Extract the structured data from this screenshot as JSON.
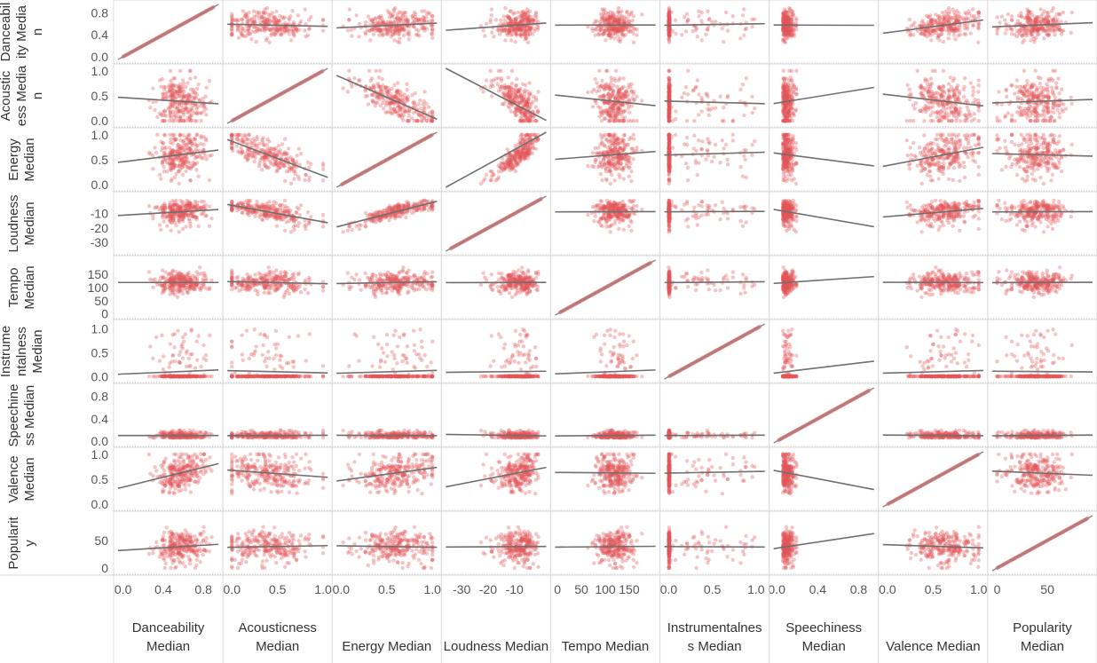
{
  "chart_data": {
    "type": "scatter",
    "subtype": "scatterplot-matrix",
    "trend_lines": true,
    "marker_color": "#E15759",
    "trend_color": "#555555",
    "grid": false,
    "variables": [
      {
        "id": "dance",
        "row_title": [
          "Danceabil",
          "ity Media",
          "n"
        ],
        "col_title": [
          "Danceability",
          "Median"
        ],
        "range": [
          -0.05,
          0.95
        ],
        "ticks": [
          {
            "v": 0.0,
            "label": "0.0"
          },
          {
            "v": 0.4,
            "label": "0.4"
          },
          {
            "v": 0.8,
            "label": "0.8"
          }
        ],
        "mean": 0.58,
        "sd": 0.15
      },
      {
        "id": "acoustic",
        "row_title": [
          "Acoustic",
          "ess Media",
          "n"
        ],
        "col_title": [
          "Acousticness",
          "Median"
        ],
        "range": [
          -0.05,
          1.05
        ],
        "ticks": [
          {
            "v": 0.0,
            "label": "0.0"
          },
          {
            "v": 0.5,
            "label": "0.5"
          },
          {
            "v": 1.0,
            "label": "1.0"
          }
        ],
        "mean": 0.33,
        "sd": 0.27
      },
      {
        "id": "energy",
        "row_title": [
          "Energy",
          "Median"
        ],
        "col_title": [
          "Energy Median"
        ],
        "range": [
          -0.05,
          1.05
        ],
        "ticks": [
          {
            "v": 0.0,
            "label": "0.0"
          },
          {
            "v": 0.5,
            "label": "0.5"
          },
          {
            "v": 1.0,
            "label": "1.0"
          }
        ],
        "mean": 0.62,
        "sd": 0.22
      },
      {
        "id": "loud",
        "row_title": [
          "Loudness",
          "Median"
        ],
        "col_title": [
          "Loudness Median"
        ],
        "range": [
          -36,
          2
        ],
        "ticks": [
          {
            "v": -30,
            "label": "-30"
          },
          {
            "v": -20,
            "label": "-20"
          },
          {
            "v": -10,
            "label": "-10"
          }
        ],
        "mean": -8,
        "sd": 3.5
      },
      {
        "id": "tempo",
        "row_title": [
          "Tempo",
          "Median"
        ],
        "col_title": [
          "Tempo Median"
        ],
        "range": [
          -5,
          205
        ],
        "ticks": [
          {
            "v": 0,
            "label": "0"
          },
          {
            "v": 50,
            "label": "50"
          },
          {
            "v": 100,
            "label": "100"
          },
          {
            "v": 150,
            "label": "150"
          }
        ],
        "mean": 120,
        "sd": 20
      },
      {
        "id": "instr",
        "row_title": [
          "Instrume",
          "ntalness",
          "Median"
        ],
        "col_title": [
          "Instrumentalnes",
          "s Median"
        ],
        "range": [
          -0.05,
          1.1
        ],
        "ticks": [
          {
            "v": 0.0,
            "label": "0.0"
          },
          {
            "v": 0.5,
            "label": "0.5"
          },
          {
            "v": 1.0,
            "label": "1.0"
          }
        ],
        "mean": 0.08,
        "sd": 0.2
      },
      {
        "id": "speech",
        "row_title": [
          "Speechine",
          "ss Median"
        ],
        "col_title": [
          "Speechiness",
          "Median"
        ],
        "range": [
          -0.03,
          0.95
        ],
        "ticks": [
          {
            "v": 0.0,
            "label": "0.0"
          },
          {
            "v": 0.4,
            "label": "0.4"
          },
          {
            "v": 0.8,
            "label": "0.8"
          }
        ],
        "mean": 0.07,
        "sd": 0.06
      },
      {
        "id": "valence",
        "row_title": [
          "Valence",
          "Median"
        ],
        "col_title": [
          "Valence Median"
        ],
        "range": [
          -0.05,
          1.05
        ],
        "ticks": [
          {
            "v": 0.0,
            "label": "0.0"
          },
          {
            "v": 0.5,
            "label": "0.5"
          },
          {
            "v": 1.0,
            "label": "1.0"
          }
        ],
        "mean": 0.52,
        "sd": 0.24
      },
      {
        "id": "pop",
        "row_title": [
          "Popularit",
          "y"
        ],
        "col_title": [
          "Popularity",
          "Median"
        ],
        "range": [
          -5,
          95
        ],
        "ticks": [
          {
            "v": 0,
            "label": "0"
          },
          {
            "v": 50,
            "label": "50"
          }
        ],
        "mean": 40,
        "sd": 18
      }
    ]
  }
}
